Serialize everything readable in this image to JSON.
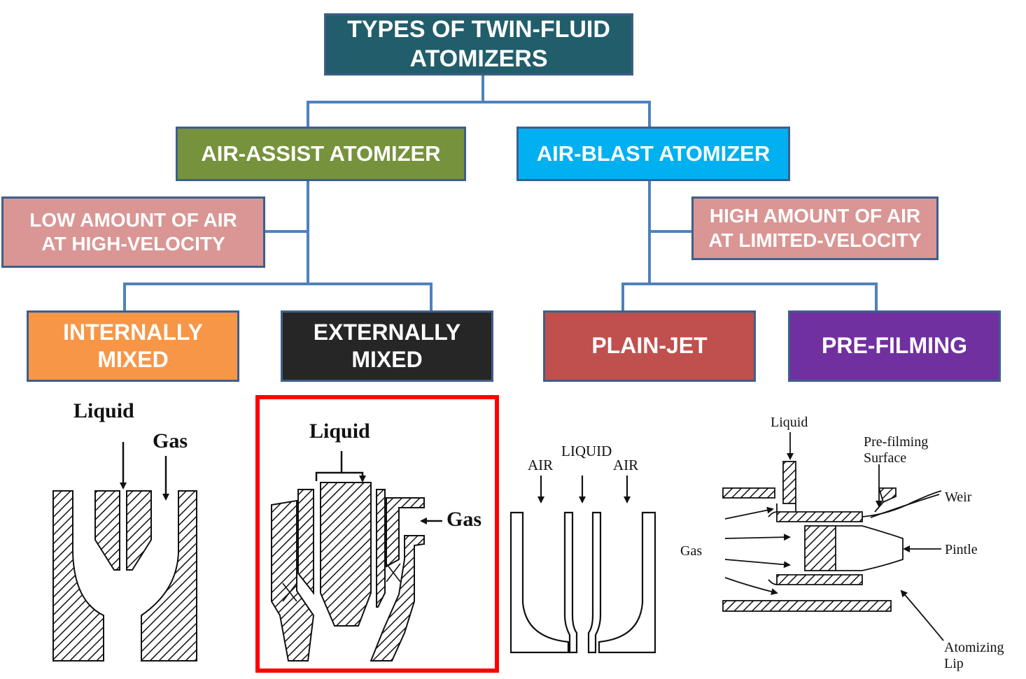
{
  "title": {
    "line1": "TYPES OF TWIN-FLUID",
    "line2": "ATOMIZERS"
  },
  "branches": {
    "air_assist": {
      "label": "AIR-ASSIST ATOMIZER",
      "desc": {
        "line1": "LOW AMOUNT OF AIR",
        "line2": "AT HIGH-VELOCITY"
      }
    },
    "air_blast": {
      "label": "AIR-BLAST ATOMIZER",
      "desc": {
        "line1": "HIGH AMOUNT OF AIR",
        "line2": "AT LIMITED-VELOCITY"
      }
    }
  },
  "leaves": {
    "internally_mixed": {
      "line1": "INTERNALLY",
      "line2": "MIXED"
    },
    "externally_mixed": {
      "line1": "EXTERNALLY",
      "line2": "MIXED"
    },
    "plain_jet": {
      "label": "PLAIN-JET"
    },
    "pre_filming": {
      "label": "PRE-FILMING"
    }
  },
  "diagram_labels": {
    "internal": {
      "liquid": "Liquid",
      "gas": "Gas"
    },
    "external": {
      "liquid": "Liquid",
      "gas": "Gas"
    },
    "plain_jet": {
      "air_left": "AIR",
      "liquid": "LIQUID",
      "air_right": "AIR"
    },
    "pre_filming": {
      "liquid": "Liquid",
      "surface_line1": "Pre-filming",
      "surface_line2": "Surface",
      "weir": "Weir",
      "gas": "Gas",
      "pintle": "Pintle",
      "lip_line1": "Atomizing",
      "lip_line2": "Lip"
    }
  },
  "colors": {
    "title": "#215d6b",
    "air_assist": "#76923c",
    "air_blast": "#00b0f0",
    "desc": "#d99694",
    "internally_mixed": "#f79646",
    "externally_mixed": "#262626",
    "plain_jet": "#c0504d",
    "pre_filming": "#7030a0",
    "connector": "#4f81bd",
    "highlight": "#ff0000"
  }
}
